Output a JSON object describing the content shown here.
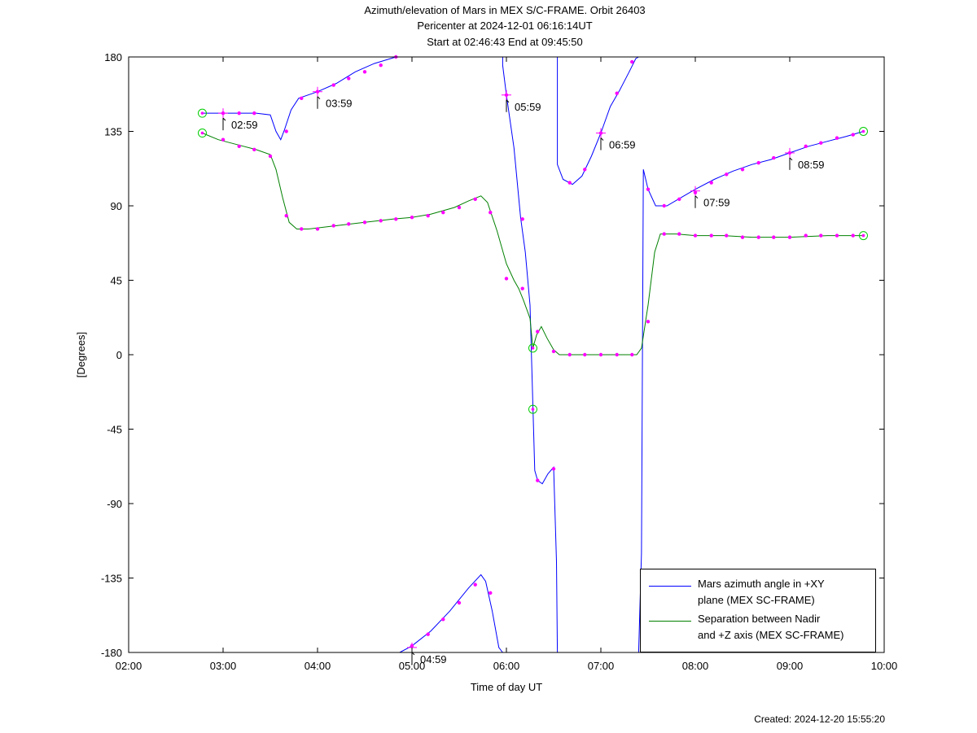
{
  "header": {
    "title": "Azimuth/elevation of Mars in MEX S/C-FRAME.  Orbit 26403",
    "pericenter": "Pericenter at 2024-12-01 06:16:14UT",
    "span": "Start at 02:46:43 End at 09:45:50"
  },
  "footer": {
    "created": "Created: 2024-12-20 15:55:20"
  },
  "legend": {
    "azimuth_line1": "Mars azimuth angle in +XY",
    "azimuth_line2": "plane (MEX SC-FRAME)",
    "sep_line1": "Separation between Nadir",
    "sep_line2": "and +Z axis (MEX SC-FRAME)"
  },
  "colors": {
    "azimuth": "#0000ff",
    "separation": "#008000",
    "markers": "#ff00ff",
    "endpoints": "#00cc00"
  },
  "chart_data": {
    "type": "line",
    "xlabel": "Time of day UT",
    "ylabel": "[Degrees]",
    "xlim": [
      2.0,
      10.0
    ],
    "ylim": [
      -180,
      180
    ],
    "xticks": [
      "02:00",
      "03:00",
      "04:00",
      "05:00",
      "06:00",
      "07:00",
      "08:00",
      "09:00",
      "10:00"
    ],
    "yticks": [
      "180",
      "135",
      "90",
      "45",
      "0",
      "-45",
      "-90",
      "-135",
      "-180"
    ],
    "series": [
      {
        "name": "Mars azimuth angle in +XY plane (MEX SC-FRAME)",
        "color": "#0000ff",
        "points": [
          [
            2.78,
            146
          ],
          [
            3.0,
            146
          ],
          [
            3.2,
            146
          ],
          [
            3.35,
            146
          ],
          [
            3.5,
            145
          ],
          [
            3.56,
            135
          ],
          [
            3.61,
            130
          ],
          [
            3.65,
            136
          ],
          [
            3.72,
            148
          ],
          [
            3.8,
            155
          ],
          [
            4.0,
            159
          ],
          [
            4.2,
            164
          ],
          [
            4.4,
            171
          ],
          [
            4.6,
            176
          ],
          [
            4.83,
            180
          ],
          null,
          [
            4.87,
            -180
          ],
          [
            5.0,
            -176
          ],
          [
            5.2,
            -167
          ],
          [
            5.4,
            -155
          ],
          [
            5.6,
            -141
          ],
          [
            5.73,
            -133
          ],
          [
            5.78,
            -137
          ],
          [
            5.85,
            -155
          ],
          [
            5.92,
            -177
          ],
          null,
          [
            5.96,
            175
          ],
          [
            6.0,
            157
          ],
          [
            6.08,
            125
          ],
          [
            6.15,
            83
          ],
          [
            6.2,
            62
          ],
          [
            6.25,
            30
          ],
          [
            6.3,
            -70
          ],
          [
            6.33,
            -76
          ],
          [
            6.38,
            -78
          ],
          [
            6.44,
            -72
          ],
          [
            6.5,
            -68
          ],
          [
            6.53,
            -125
          ],
          null,
          [
            6.54,
            115
          ],
          [
            6.6,
            106
          ],
          [
            6.7,
            103
          ],
          [
            6.8,
            108
          ],
          [
            6.9,
            120
          ],
          [
            7.0,
            134
          ],
          [
            7.1,
            150
          ],
          [
            7.2,
            160
          ],
          [
            7.3,
            171
          ],
          [
            7.37,
            179
          ],
          null,
          [
            7.4,
            -180
          ],
          [
            7.43,
            -120
          ],
          [
            7.45,
            112
          ],
          [
            7.5,
            100
          ],
          [
            7.58,
            90
          ],
          [
            7.7,
            90
          ],
          [
            7.85,
            95
          ],
          [
            8.0,
            100
          ],
          [
            8.2,
            106
          ],
          [
            8.4,
            111
          ],
          [
            8.6,
            115
          ],
          [
            8.8,
            118
          ],
          [
            9.0,
            122
          ],
          [
            9.2,
            126
          ],
          [
            9.4,
            129
          ],
          [
            9.6,
            132
          ],
          [
            9.78,
            135
          ]
        ]
      },
      {
        "name": "Separation between Nadir and +Z axis (MEX SC-FRAME)",
        "color": "#008000",
        "points": [
          [
            2.78,
            134
          ],
          [
            2.95,
            130
          ],
          [
            3.15,
            127
          ],
          [
            3.35,
            124
          ],
          [
            3.5,
            121
          ],
          [
            3.56,
            112
          ],
          [
            3.63,
            95
          ],
          [
            3.7,
            80
          ],
          [
            3.78,
            76
          ],
          [
            3.9,
            76
          ],
          [
            4.2,
            78
          ],
          [
            4.5,
            80
          ],
          [
            4.8,
            82
          ],
          [
            5.0,
            83
          ],
          [
            5.2,
            85
          ],
          [
            5.45,
            89
          ],
          [
            5.6,
            93
          ],
          [
            5.73,
            96
          ],
          [
            5.8,
            92
          ],
          [
            5.9,
            75
          ],
          [
            6.0,
            55
          ],
          [
            6.08,
            45
          ],
          [
            6.13,
            40
          ],
          [
            6.18,
            33
          ],
          [
            6.25,
            22
          ],
          [
            6.28,
            4
          ],
          [
            6.32,
            12
          ],
          [
            6.37,
            17
          ],
          [
            6.43,
            10
          ],
          [
            6.5,
            3
          ],
          [
            6.56,
            0
          ],
          [
            7.0,
            0
          ],
          [
            7.38,
            0
          ],
          [
            7.43,
            4
          ],
          [
            7.5,
            30
          ],
          [
            7.57,
            62
          ],
          [
            7.63,
            73
          ],
          [
            7.8,
            73
          ],
          [
            8.0,
            72
          ],
          [
            8.3,
            72
          ],
          [
            8.6,
            71
          ],
          [
            9.0,
            71
          ],
          [
            9.4,
            72
          ],
          [
            9.78,
            72
          ]
        ]
      }
    ],
    "markers_azimuth": [
      [
        3.0,
        146
      ],
      [
        3.17,
        146
      ],
      [
        3.33,
        146
      ],
      [
        3.67,
        135
      ],
      [
        3.83,
        155
      ],
      [
        4.0,
        159
      ],
      [
        4.17,
        163
      ],
      [
        4.33,
        167
      ],
      [
        4.5,
        171
      ],
      [
        4.67,
        175
      ],
      [
        4.83,
        180
      ],
      [
        5.0,
        -176
      ],
      [
        5.17,
        -169
      ],
      [
        5.33,
        -160
      ],
      [
        5.5,
        -150
      ],
      [
        5.67,
        -139
      ],
      [
        5.83,
        -144
      ],
      [
        6.0,
        157
      ],
      [
        6.17,
        82
      ],
      [
        6.33,
        -76
      ],
      [
        6.5,
        -69
      ],
      [
        6.67,
        104
      ],
      [
        6.83,
        112
      ],
      [
        7.0,
        134
      ],
      [
        7.17,
        158
      ],
      [
        7.33,
        177
      ],
      [
        7.5,
        100
      ],
      [
        7.67,
        90
      ],
      [
        7.83,
        94
      ],
      [
        8.0,
        98
      ],
      [
        8.17,
        104
      ],
      [
        8.33,
        109
      ],
      [
        8.5,
        112
      ],
      [
        8.67,
        116
      ],
      [
        8.83,
        119
      ],
      [
        9.0,
        122
      ],
      [
        9.17,
        126
      ],
      [
        9.33,
        128
      ],
      [
        9.5,
        131
      ],
      [
        9.67,
        133
      ]
    ],
    "markers_separation": [
      [
        3.0,
        130
      ],
      [
        3.17,
        126
      ],
      [
        3.33,
        124
      ],
      [
        3.5,
        120
      ],
      [
        3.67,
        84
      ],
      [
        3.83,
        76
      ],
      [
        4.0,
        76
      ],
      [
        4.17,
        78
      ],
      [
        4.33,
        79
      ],
      [
        4.5,
        80
      ],
      [
        4.67,
        81
      ],
      [
        4.83,
        82
      ],
      [
        5.0,
        83
      ],
      [
        5.17,
        84
      ],
      [
        5.33,
        86
      ],
      [
        5.5,
        89
      ],
      [
        5.67,
        94
      ],
      [
        5.83,
        86
      ],
      [
        6.0,
        46
      ],
      [
        6.17,
        40
      ],
      [
        6.33,
        14
      ],
      [
        6.5,
        2
      ],
      [
        6.67,
        0
      ],
      [
        6.83,
        0
      ],
      [
        7.0,
        0
      ],
      [
        7.17,
        0
      ],
      [
        7.33,
        0
      ],
      [
        7.5,
        20
      ],
      [
        7.67,
        73
      ],
      [
        7.83,
        73
      ],
      [
        8.0,
        72
      ],
      [
        8.17,
        72
      ],
      [
        8.33,
        72
      ],
      [
        8.5,
        71
      ],
      [
        8.67,
        71
      ],
      [
        8.83,
        71
      ],
      [
        9.0,
        71
      ],
      [
        9.17,
        72
      ],
      [
        9.33,
        72
      ],
      [
        9.5,
        72
      ],
      [
        9.67,
        72
      ]
    ],
    "endpoints": [
      [
        2.78,
        146
      ],
      [
        2.78,
        134
      ],
      [
        9.78,
        135
      ],
      [
        9.78,
        72
      ],
      [
        6.28,
        4
      ],
      [
        6.28,
        -33
      ]
    ],
    "time_labels": [
      {
        "t": 2.98,
        "y": 146,
        "text": "02:59"
      },
      {
        "t": 3.98,
        "y": 159,
        "text": "03:59"
      },
      {
        "t": 4.98,
        "y": -177,
        "text": "04:59"
      },
      {
        "t": 5.98,
        "y": 157,
        "text": "05:59"
      },
      {
        "t": 6.98,
        "y": 134,
        "text": "06:59"
      },
      {
        "t": 7.98,
        "y": 99,
        "text": "07:59"
      },
      {
        "t": 8.98,
        "y": 122,
        "text": "08:59"
      }
    ]
  }
}
